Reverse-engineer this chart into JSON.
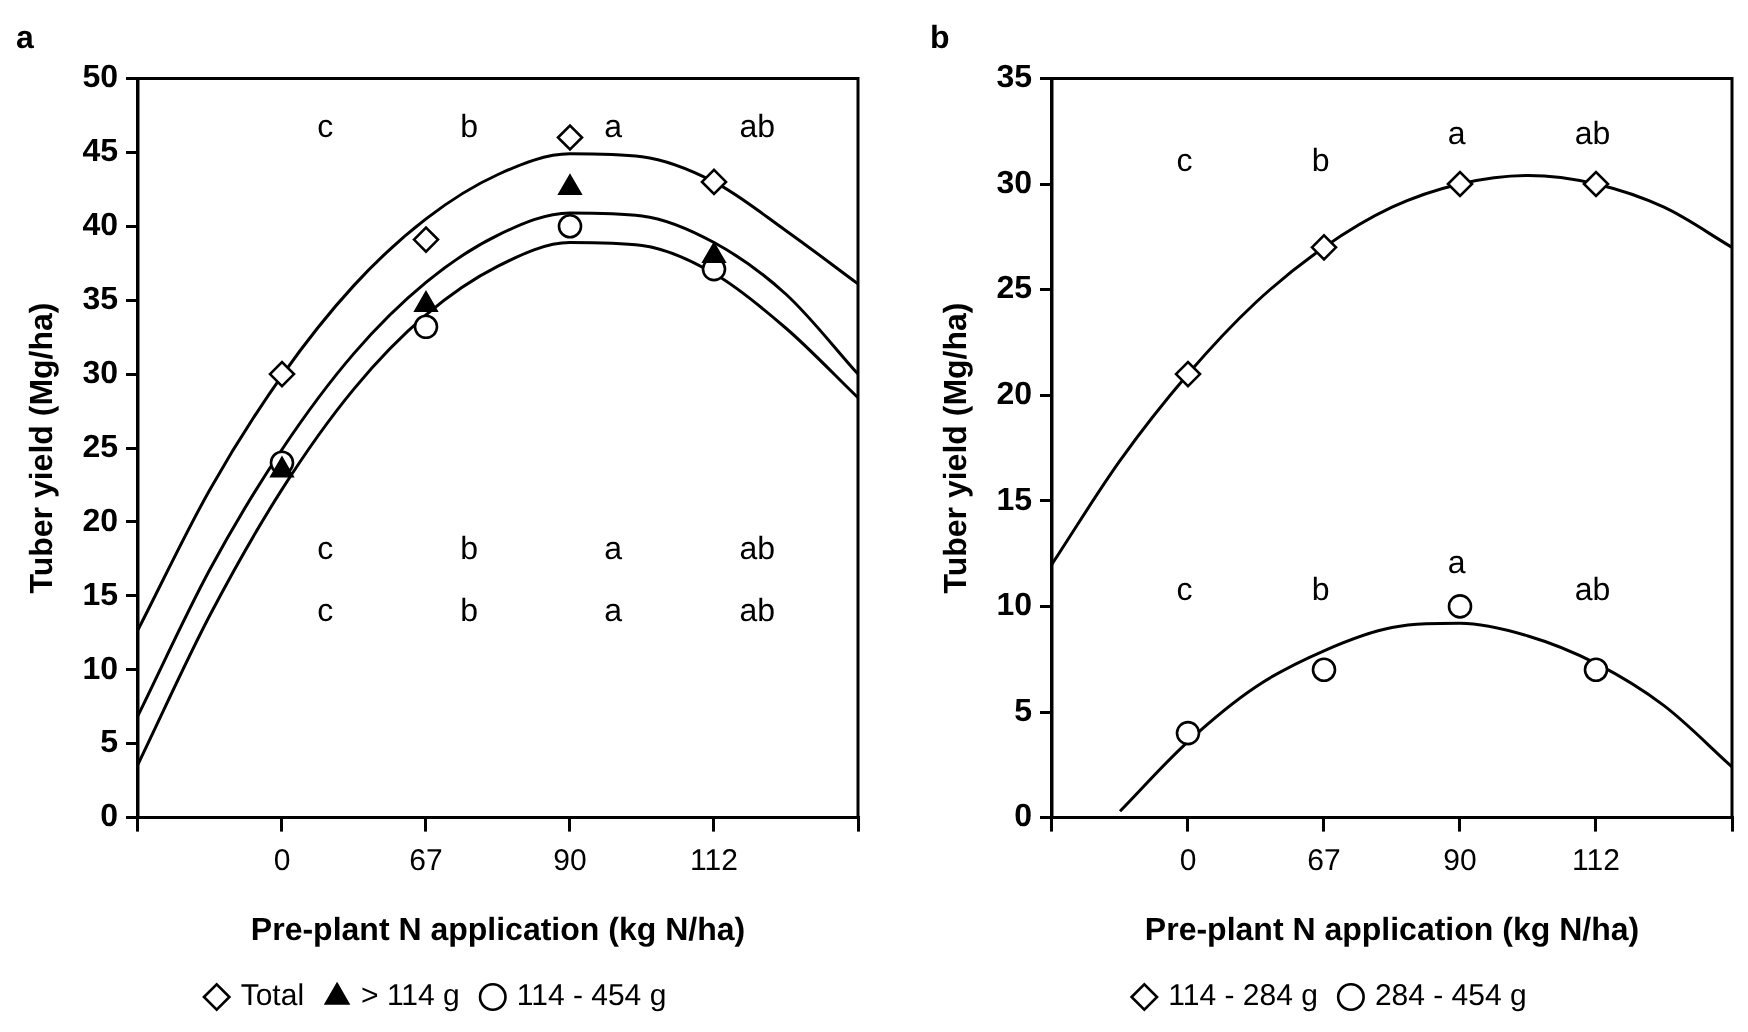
{
  "chart_data": [
    {
      "type": "line",
      "title": "a",
      "xlabel": "Pre-plant N application (kg N/ha)",
      "ylabel": "Tuber yield (Mg/ha)",
      "categories": [
        null,
        null,
        "0",
        null,
        "67",
        null,
        "90",
        null,
        "112",
        null,
        null
      ],
      "ylim": [
        0,
        50
      ],
      "yticks": [
        0,
        5,
        10,
        15,
        20,
        25,
        30,
        35,
        40,
        45,
        50
      ],
      "grid": false,
      "legend": "bottom",
      "series": [
        {
          "color": "#000000",
          "marker": "none",
          "values": [
            12.7,
            22.2,
            29.9,
            36,
            40.5,
            43.5,
            44.9,
            44.7,
            43,
            39.7,
            36.1
          ]
        },
        {
          "color": "#000000",
          "marker": "none",
          "values": [
            6.9,
            16.8,
            24.9,
            31.4,
            36.2,
            39.4,
            40.9,
            40.7,
            38.9,
            35.4,
            30
          ]
        },
        {
          "color": "#000000",
          "marker": "none",
          "values": [
            3.6,
            13.7,
            22.2,
            29,
            34,
            37.3,
            38.9,
            38.7,
            36.8,
            33.1,
            28.4
          ]
        },
        {
          "type": "scatter",
          "name": "Total",
          "color": "#000000",
          "marker": "diamond",
          "values": [
            null,
            null,
            30,
            null,
            39.1,
            null,
            46,
            null,
            43,
            null,
            null
          ]
        },
        {
          "type": "scatter",
          "name": "> 114 g",
          "color": "#000000",
          "marker": "triangle",
          "values": [
            null,
            null,
            23.5,
            null,
            34.7,
            null,
            42.6,
            null,
            38,
            null,
            null
          ]
        },
        {
          "type": "scatter",
          "name": "114 - 454 g",
          "color": "#000000",
          "marker": "circle",
          "values": [
            null,
            null,
            24,
            null,
            33.2,
            null,
            40,
            null,
            37.1,
            null,
            null
          ]
        }
      ],
      "annotations": [
        "c",
        "b",
        "a",
        "ab",
        "c",
        "b",
        "a",
        "ab",
        "c",
        "b",
        "a",
        "ab"
      ]
    },
    {
      "type": "line",
      "title": "b",
      "xlabel": "Pre-plant N application (kg N/ha)",
      "ylabel": "Tuber yield (Mg/ha)",
      "categories": [
        null,
        null,
        "0",
        null,
        "67",
        null,
        "90",
        null,
        "112",
        null,
        null
      ],
      "ylim": [
        0,
        35
      ],
      "yticks": [
        0,
        5,
        10,
        15,
        20,
        25,
        30,
        35
      ],
      "grid": false,
      "legend": "bottom",
      "series": [
        {
          "color": "#000000",
          "marker": "none",
          "values": [
            12,
            16.9,
            21,
            24.4,
            27,
            28.9,
            30,
            30.4,
            30,
            28.9,
            27
          ]
        },
        {
          "color": "#000000",
          "marker": "none",
          "values": [
            null,
            0.3,
            3.6,
            6.2,
            7.9,
            9,
            9.2,
            8.6,
            7.3,
            5.3,
            2.4
          ]
        },
        {
          "type": "scatter",
          "name": "114 - 284 g",
          "color": "#000000",
          "marker": "diamond",
          "values": [
            null,
            null,
            21,
            null,
            27,
            null,
            30,
            null,
            30,
            null,
            null
          ]
        },
        {
          "type": "scatter",
          "name": "284 - 454 g",
          "color": "#000000",
          "marker": "circle",
          "values": [
            null,
            null,
            4,
            null,
            7,
            null,
            10,
            null,
            7,
            null,
            null
          ]
        }
      ],
      "annotations": [
        "c",
        "b",
        "a",
        "ab",
        "c",
        "b",
        "a",
        "ab"
      ]
    }
  ]
}
